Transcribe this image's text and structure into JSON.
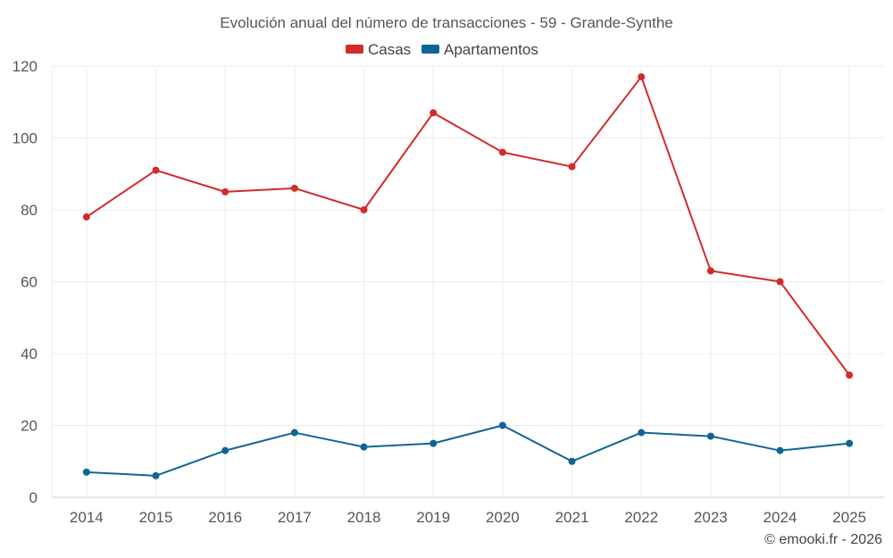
{
  "chart_data": {
    "type": "line",
    "title": "Evolución anual del número de transacciones - 59 - Grande-Synthe",
    "categories": [
      "2014",
      "2015",
      "2016",
      "2017",
      "2018",
      "2019",
      "2020",
      "2021",
      "2022",
      "2023",
      "2024",
      "2025"
    ],
    "series": [
      {
        "name": "Casas",
        "color": "#d32a2a",
        "values": [
          78,
          91,
          85,
          86,
          80,
          107,
          96,
          92,
          117,
          63,
          60,
          34
        ]
      },
      {
        "name": "Apartamentos",
        "color": "#0f6496",
        "values": [
          7,
          6,
          13,
          18,
          14,
          15,
          20,
          10,
          18,
          17,
          13,
          15
        ]
      }
    ],
    "ylim": [
      0,
      120
    ],
    "yticks": [
      0,
      20,
      40,
      60,
      80,
      100,
      120
    ],
    "xlabel": "",
    "ylabel": "",
    "grid": true,
    "legend": "top-center"
  },
  "credit": "© emooki.fr - 2026"
}
